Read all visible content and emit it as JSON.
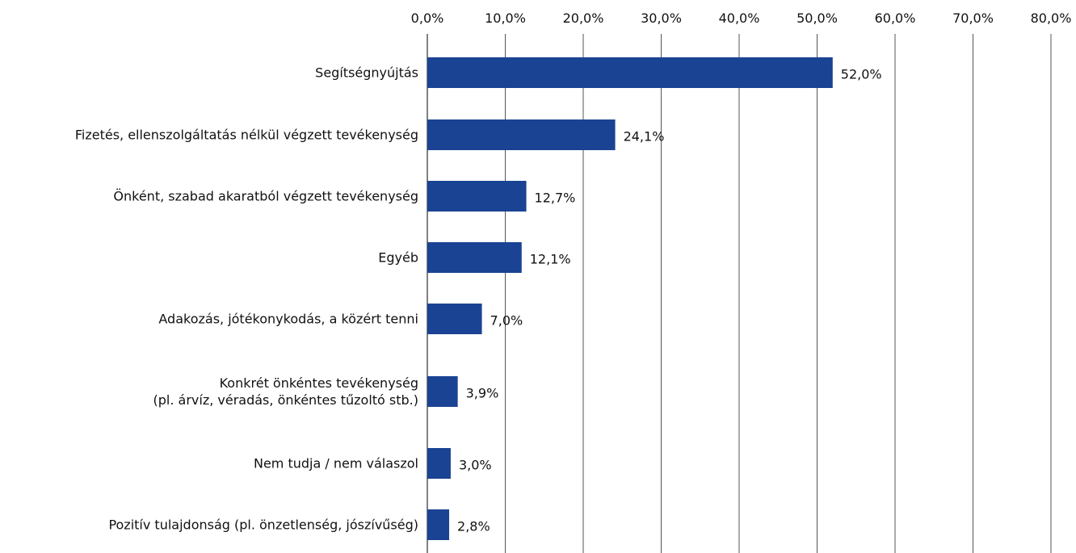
{
  "chart_data": {
    "type": "bar",
    "orientation": "horizontal",
    "categories": [
      "Segítségnyújtás",
      "Fizetés, ellenszolgáltatás nélkül végzett tevékenység",
      "Önként, szabad akaratból végzett tevékenység",
      "Egyéb",
      "Adakozás, jótékonykodás, a közért tenni",
      "Konkrét önkéntes tevékenység\n(pl. árvíz, véradás, önkéntes tűzoltó stb.)",
      "Nem tudja / nem válaszol",
      "Pozitív tulajdonság (pl. önzetlenség, jószívűség)"
    ],
    "values": [
      52.0,
      24.1,
      12.7,
      12.1,
      7.0,
      3.9,
      3.0,
      2.8
    ],
    "value_labels": [
      "52,0%",
      "24,1%",
      "12,7%",
      "12,1%",
      "7,0%",
      "3,9%",
      "3,0%",
      "2,8%"
    ],
    "color": "#1a4393",
    "xlim": [
      0,
      80
    ],
    "xticks": [
      {
        "value": 0,
        "label": "0,0%"
      },
      {
        "value": 10,
        "label": "10,0%"
      },
      {
        "value": 20,
        "label": "20,0%"
      },
      {
        "value": 30,
        "label": "30,0%"
      },
      {
        "value": 40,
        "label": "40,0%"
      },
      {
        "value": 50,
        "label": "50,0%"
      },
      {
        "value": 60,
        "label": "60,0%"
      },
      {
        "value": 70,
        "label": "70,0%"
      },
      {
        "value": 80,
        "label": "80,0%"
      }
    ],
    "grid": true
  }
}
